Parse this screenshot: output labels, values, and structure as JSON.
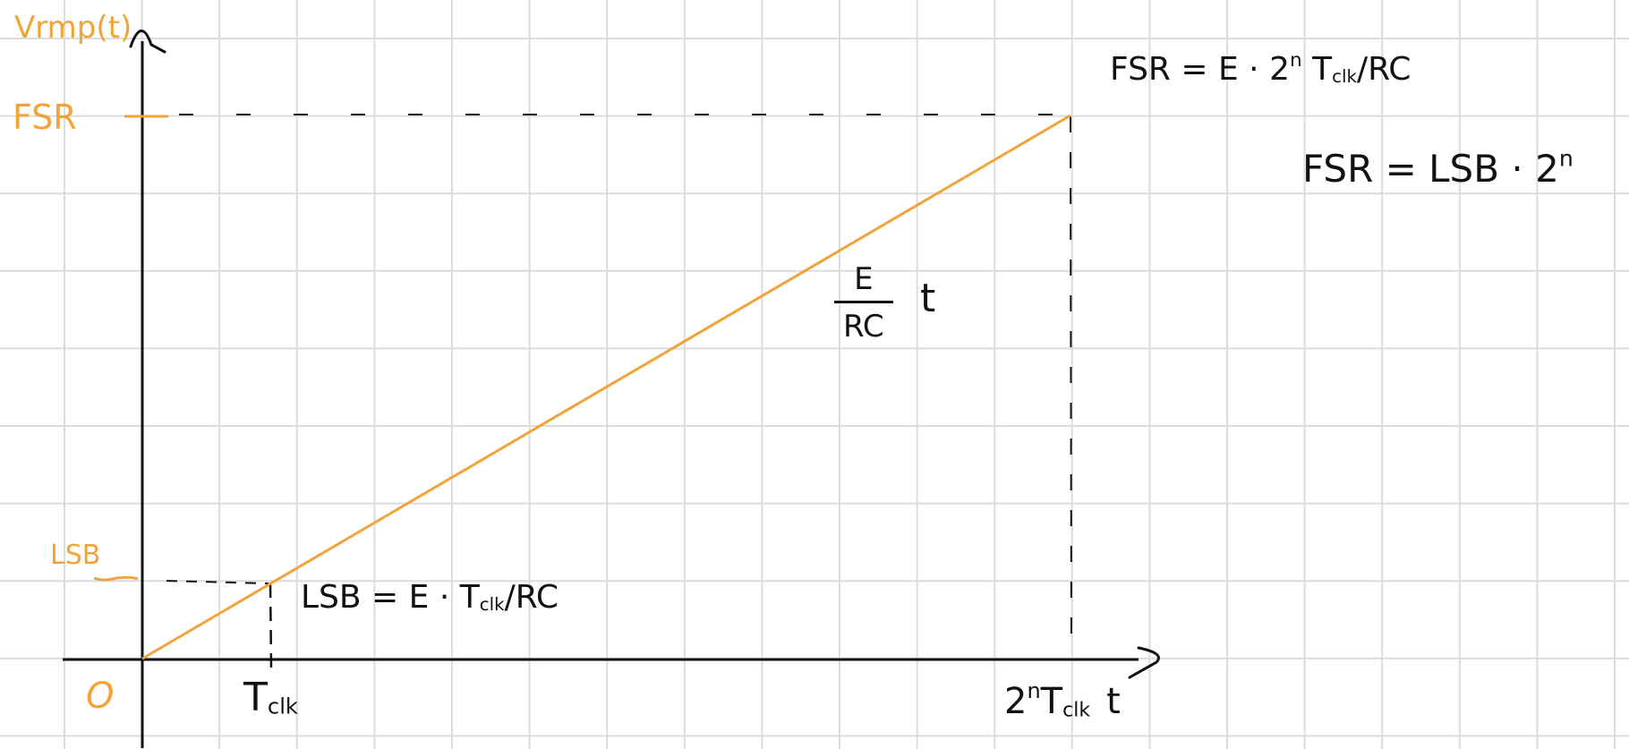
{
  "colors": {
    "ramp": "#f2a33a",
    "axes": "#111111",
    "grid": "#dcdcdc",
    "orange_labels": "#f2a33a"
  },
  "axes": {
    "y_label": "Vrmp(t)",
    "x_label": "t",
    "origin": "O"
  },
  "y_ticks": {
    "fsr": "FSR",
    "lsb": "LSB"
  },
  "x_ticks": {
    "tclk": {
      "base": "T",
      "sub": "clk"
    },
    "full": {
      "pre": "2",
      "sup": "n",
      "base": "T",
      "sub": "clk",
      "axis": "t"
    }
  },
  "annotations": {
    "lsb_eq": {
      "left": "LSB = E · T",
      "sub": "clk",
      "right": "/RC"
    },
    "fsr_eq": {
      "left": "FSR = E · 2",
      "sup": "n",
      "mid": " T",
      "sub": "clk",
      "right": "/RC"
    },
    "fsr_lsb": {
      "text": "FSR = LSB · 2",
      "sup": "n"
    },
    "slope": {
      "num": "E",
      "den": "RC",
      "var": "t"
    }
  }
}
